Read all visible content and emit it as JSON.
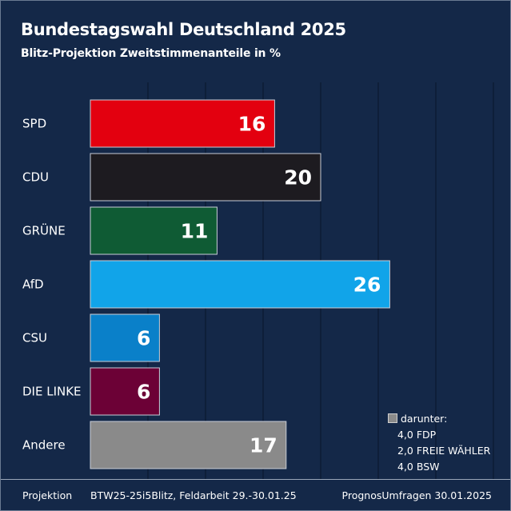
{
  "header": {
    "title": "Bundestagswahl Deutschland 2025",
    "subtitle": "Blitz-Projektion Zweitstimmenanteile in %"
  },
  "chart_data": {
    "type": "bar",
    "orientation": "horizontal",
    "categories": [
      "SPD",
      "CDU",
      "GRÜNE",
      "AfD",
      "CSU",
      "DIE LINKE",
      "Andere"
    ],
    "values": [
      16,
      20,
      11,
      26,
      6,
      6,
      17
    ],
    "colors": [
      "#e3000f",
      "#1d1b20",
      "#0f5b34",
      "#11a4e9",
      "#0a80c9",
      "#6c0136",
      "#8a8a8a"
    ],
    "xlim": [
      0,
      35
    ],
    "grid": true,
    "legend": {
      "position": "bottom-right",
      "label": "darunter:",
      "color": "#8a8a8a",
      "items": [
        "4,0 FDP",
        "2,0 FREIE WÄHLER",
        "4,0 BSW"
      ]
    }
  },
  "footer": {
    "left": "Projektion",
    "middle": "BTW25-25i5Blitz, Feldarbeit 29.-30.01.25",
    "right": "PrognosUmfragen 30.01.2025"
  }
}
